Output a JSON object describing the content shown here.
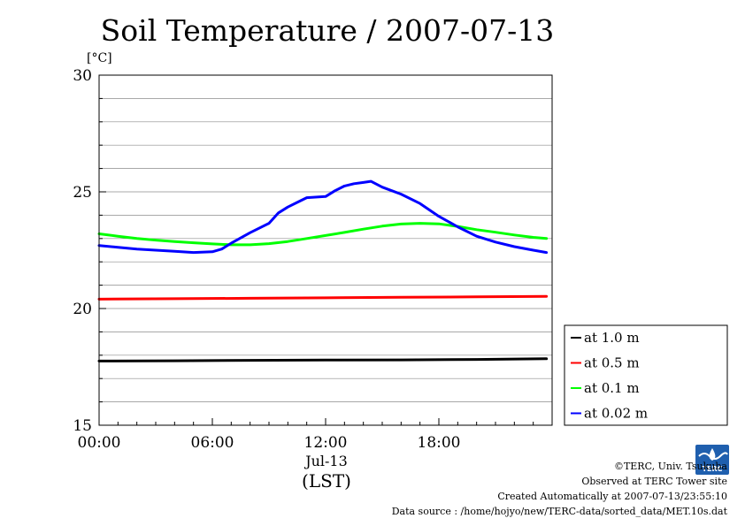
{
  "chart_data": {
    "type": "line",
    "title": "Soil Temperature / 2007-07-13",
    "ylabel": "[°C]",
    "xlabel": "(LST)",
    "date_label": "Jul-13",
    "ylim": [
      15,
      30
    ],
    "xlim": [
      0,
      24
    ],
    "y_ticks": [
      15,
      20,
      25,
      30
    ],
    "y_minor_step": 1,
    "x_ticks": [
      {
        "value": 0,
        "label": "00:00"
      },
      {
        "value": 6,
        "label": "06:00"
      },
      {
        "value": 12,
        "label": "12:00"
      },
      {
        "value": 18,
        "label": "18:00"
      }
    ],
    "grid": true,
    "legend_position": "right-bottom",
    "series": [
      {
        "name": "at 1.0 m",
        "color": "#000000",
        "x": [
          0,
          4,
          8,
          12,
          16,
          20,
          23.7
        ],
        "values": [
          17.75,
          17.76,
          17.78,
          17.79,
          17.8,
          17.82,
          17.85
        ]
      },
      {
        "name": "at 0.5 m",
        "color": "#ff0000",
        "x": [
          0,
          4,
          8,
          12,
          16,
          20,
          23.7
        ],
        "values": [
          20.4,
          20.42,
          20.44,
          20.46,
          20.48,
          20.5,
          20.52
        ]
      },
      {
        "name": "at 0.1 m",
        "color": "#00ff00",
        "x": [
          0,
          1,
          2,
          3,
          4,
          5,
          6,
          7,
          8,
          9,
          10,
          11,
          12,
          13,
          14,
          15,
          16,
          17,
          18,
          19,
          20,
          21,
          22,
          23,
          23.7
        ],
        "values": [
          23.2,
          23.1,
          23.0,
          22.93,
          22.87,
          22.82,
          22.77,
          22.73,
          22.73,
          22.78,
          22.87,
          23.0,
          23.13,
          23.26,
          23.4,
          23.53,
          23.62,
          23.65,
          23.63,
          23.52,
          23.38,
          23.27,
          23.15,
          23.05,
          23.0
        ]
      },
      {
        "name": "at 0.02 m",
        "color": "#0000ff",
        "x": [
          0,
          1,
          2,
          3,
          4,
          5,
          6,
          6.5,
          7,
          8,
          9,
          9.5,
          10,
          10.5,
          11,
          12,
          12.5,
          13,
          13.5,
          14,
          14.4,
          15,
          15.5,
          16,
          17,
          18,
          19,
          20,
          21,
          22,
          23,
          23.7
        ],
        "values": [
          22.7,
          22.62,
          22.55,
          22.5,
          22.45,
          22.4,
          22.43,
          22.55,
          22.8,
          23.25,
          23.65,
          24.1,
          24.35,
          24.55,
          24.75,
          24.8,
          25.05,
          25.25,
          25.35,
          25.4,
          25.45,
          25.2,
          25.05,
          24.9,
          24.5,
          23.95,
          23.5,
          23.1,
          22.85,
          22.65,
          22.5,
          22.4
        ]
      }
    ]
  },
  "credits": {
    "copyright": "©TERC, Univ. Tsukuba",
    "observed": "Observed at TERC Tower site",
    "created": "Created Automatically at 2007-07-13/23:55:10",
    "source": "Data source : /home/hojyo/new/TERC-data/sorted_data/MET.10s.dat"
  },
  "logo": {
    "icon": "terc-logo-icon",
    "text": "TERC",
    "color": "#1f5fae"
  }
}
